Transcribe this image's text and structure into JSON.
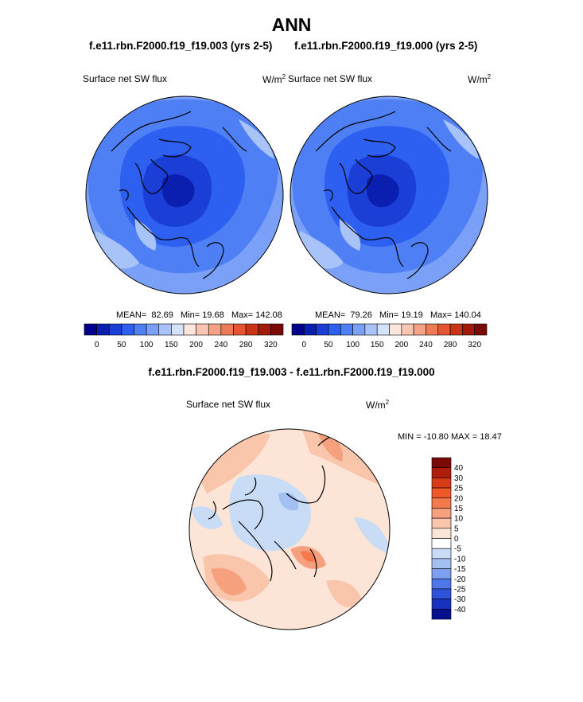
{
  "title": "ANN",
  "panels": [
    {
      "case": "f.e11.rbn.F2000.f19_f19.003 (yrs 2-5)",
      "variable": "Surface net SW flux",
      "units": "W/m",
      "units_sup": "2",
      "mean_label": "MEAN=",
      "mean": "82.69",
      "min_label": "Min=",
      "min": "19.68",
      "max_label": "Max=",
      "max": "142.08"
    },
    {
      "case": "f.e11.rbn.F2000.f19_f19.000 (yrs 2-5)",
      "variable": "Surface net SW flux",
      "units": "W/m",
      "units_sup": "2",
      "mean_label": "MEAN=",
      "mean": "79.26",
      "min_label": "Min=",
      "min": "19.19",
      "max_label": "Max=",
      "max": "140.04"
    }
  ],
  "abs_colorbar": {
    "colors": [
      "#00008b",
      "#0a1fb0",
      "#1b3fd6",
      "#2d5ff0",
      "#4f7ff5",
      "#7aa0f7",
      "#a7c3f8",
      "#d4e2fa",
      "#fde6de",
      "#f9c5b0",
      "#f4a184",
      "#ee7b57",
      "#e55532",
      "#cc3315",
      "#a31a0a",
      "#7a0a05"
    ],
    "ticks": [
      "0",
      "50",
      "100",
      "150",
      "200",
      "240",
      "280",
      "320"
    ]
  },
  "diff": {
    "title": "f.e11.rbn.F2000.f19_f19.003 - f.e11.rbn.F2000.f19_f19.000",
    "variable": "Surface net SW flux",
    "units": "W/m",
    "units_sup": "2",
    "minmax": "MIN = -10.80 MAX =  18.47",
    "colorbar": {
      "colors": [
        "#7a0a05",
        "#b01c0b",
        "#d93a17",
        "#f0582a",
        "#f47a4e",
        "#f7a07e",
        "#f9c6ac",
        "#fce4d6",
        "#ffffff",
        "#c9dcf6",
        "#a3c0f3",
        "#7d9ff0",
        "#4f77ea",
        "#2d52dc",
        "#1630bf",
        "#06108f"
      ],
      "ticks": [
        "40",
        "30",
        "25",
        "20",
        "15",
        "10",
        "5",
        "0",
        "-5",
        "-10",
        "-15",
        "-20",
        "-25",
        "-30",
        "-40"
      ]
    }
  }
}
